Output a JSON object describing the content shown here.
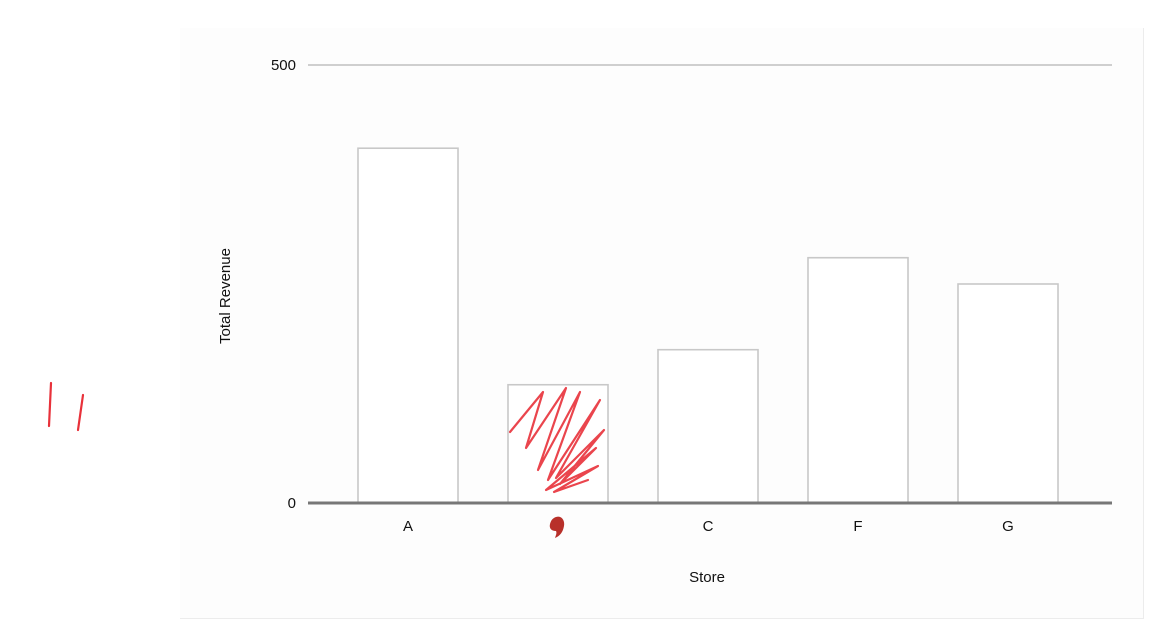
{
  "chart_data": {
    "type": "bar",
    "title": "",
    "xlabel": "Store",
    "ylabel": "Total Revenue",
    "ylim": [
      0,
      500
    ],
    "yticks": [
      0,
      500
    ],
    "categories": [
      "A",
      "B",
      "C",
      "F",
      "G"
    ],
    "values": [
      405,
      135,
      175,
      280,
      250
    ],
    "grid": false,
    "legend": "none",
    "colors": {
      "bar_fill": "#ffffff",
      "bar_stroke": "#c8c8c8",
      "axis": "#777777",
      "gridline": "#cfcfcf",
      "text": "#111111",
      "scribble": "#e8313a",
      "mark": "#b8302a"
    },
    "annotations": [
      {
        "kind": "scribble",
        "over_category": "B"
      },
      {
        "kind": "ink-blot",
        "over_tick": "B"
      },
      {
        "kind": "tally-strokes",
        "side": "left"
      }
    ]
  }
}
